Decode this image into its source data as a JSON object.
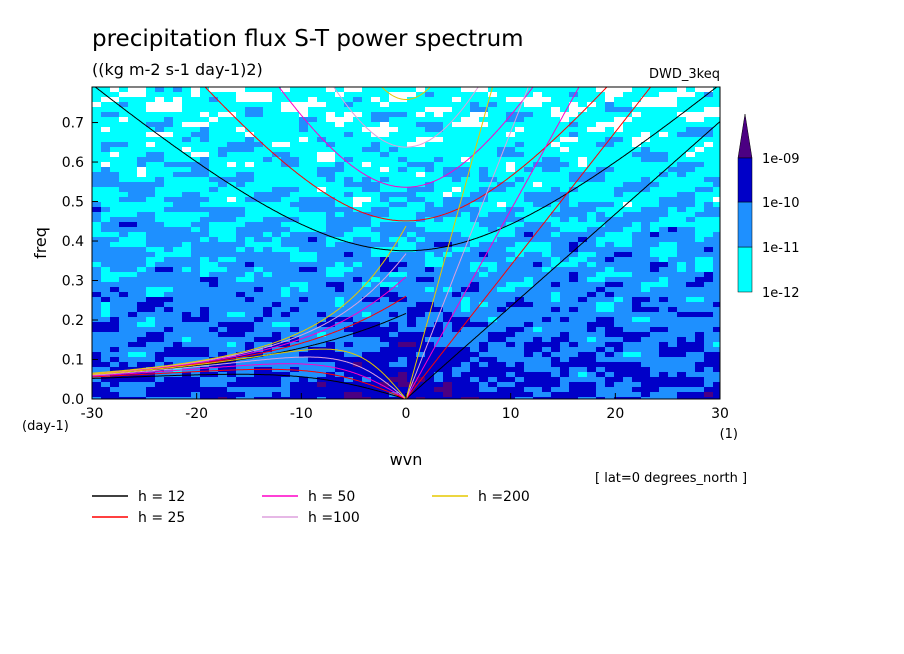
{
  "chart_data": {
    "type": "heatmap",
    "title": "precipitation flux S-T power spectrum",
    "subtitle": "((kg m-2 s-1 day-1)2)",
    "source_label": "DWD_3keq",
    "xlabel": "wvn",
    "ylabel": "freq",
    "x_unit_label": "(1)",
    "y_unit_label": "(day-1)",
    "xlim": [
      -30,
      30
    ],
    "ylim": [
      0,
      0.79
    ],
    "x_ticks": [
      "-30",
      "-20",
      "-10",
      "0",
      "10",
      "20",
      "30"
    ],
    "y_ticks": [
      "0.0",
      "0.1",
      "0.2",
      "0.3",
      "0.4",
      "0.5",
      "0.6",
      "0.7"
    ],
    "note": "[ lat=0 degrees_north ]",
    "colorbar": {
      "levels": [
        "1e-12",
        "1e-11",
        "1e-10",
        "1e-09"
      ],
      "colors": [
        "#00ffff",
        "#1e90ff",
        "#0000c8",
        "#4b0082"
      ]
    },
    "dispersion_curves": [
      {
        "label": "h = 12",
        "h": 12,
        "color": "#000000"
      },
      {
        "label": "h = 25",
        "h": 25,
        "color": "#ff0000"
      },
      {
        "label": "h = 50",
        "h": 50,
        "color": "#ff00c8"
      },
      {
        "label": "h =100",
        "h": 100,
        "color": "#dda0dd"
      },
      {
        "label": "h =200",
        "h": 200,
        "color": "#e6c800"
      }
    ]
  }
}
